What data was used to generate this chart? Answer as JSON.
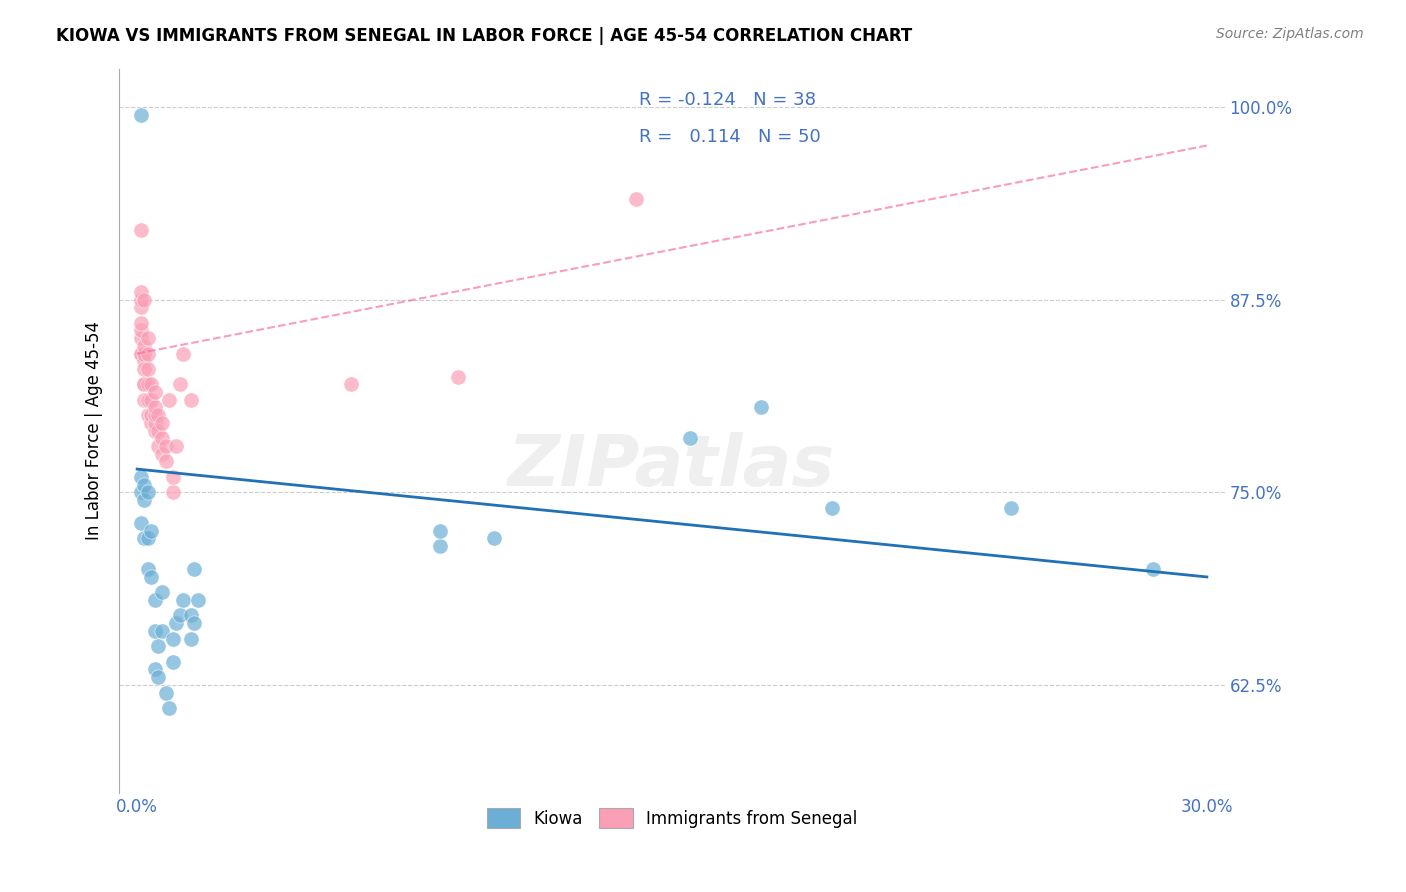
{
  "title": "KIOWA VS IMMIGRANTS FROM SENEGAL IN LABOR FORCE | AGE 45-54 CORRELATION CHART",
  "source": "Source: ZipAtlas.com",
  "ylabel": "In Labor Force | Age 45-54",
  "kiowa_color": "#6baed6",
  "senegal_color": "#fa9fb5",
  "trend_kiowa_color": "#2171b5",
  "trend_senegal_color": "#f768a1",
  "legend_R_kiowa": "-0.124",
  "legend_N_kiowa": "38",
  "legend_R_senegal": "0.114",
  "legend_N_senegal": "50",
  "kiowa_x": [
    0.001,
    0.001,
    0.001,
    0.002,
    0.002,
    0.002,
    0.003,
    0.003,
    0.003,
    0.004,
    0.004,
    0.005,
    0.005,
    0.005,
    0.006,
    0.006,
    0.007,
    0.007,
    0.008,
    0.009,
    0.01,
    0.01,
    0.011,
    0.012,
    0.013,
    0.015,
    0.015,
    0.016,
    0.016,
    0.017,
    0.085,
    0.085,
    0.1,
    0.155,
    0.175,
    0.195,
    0.245,
    0.285
  ],
  "kiowa_y": [
    0.75,
    0.73,
    0.76,
    0.72,
    0.755,
    0.745,
    0.7,
    0.72,
    0.75,
    0.695,
    0.725,
    0.635,
    0.66,
    0.68,
    0.63,
    0.65,
    0.66,
    0.685,
    0.62,
    0.61,
    0.64,
    0.655,
    0.665,
    0.67,
    0.68,
    0.655,
    0.67,
    0.665,
    0.7,
    0.68,
    0.715,
    0.725,
    0.72,
    0.785,
    0.805,
    0.74,
    0.74,
    0.7
  ],
  "kiowa_extra_x": [
    0.001
  ],
  "kiowa_extra_y": [
    0.995
  ],
  "senegal_x": [
    0.001,
    0.001,
    0.001,
    0.001,
    0.001,
    0.001,
    0.001,
    0.001,
    0.001,
    0.002,
    0.002,
    0.002,
    0.002,
    0.002,
    0.002,
    0.002,
    0.002,
    0.003,
    0.003,
    0.003,
    0.003,
    0.003,
    0.003,
    0.004,
    0.004,
    0.004,
    0.004,
    0.005,
    0.005,
    0.005,
    0.005,
    0.005,
    0.006,
    0.006,
    0.006,
    0.007,
    0.007,
    0.007,
    0.008,
    0.008,
    0.009,
    0.01,
    0.01,
    0.011,
    0.012,
    0.013,
    0.015,
    0.06,
    0.09,
    0.14
  ],
  "senegal_y": [
    0.84,
    0.85,
    0.855,
    0.86,
    0.87,
    0.875,
    0.88,
    0.92,
    0.84,
    0.81,
    0.82,
    0.835,
    0.84,
    0.845,
    0.875,
    0.82,
    0.83,
    0.8,
    0.81,
    0.82,
    0.83,
    0.84,
    0.85,
    0.795,
    0.8,
    0.81,
    0.82,
    0.79,
    0.795,
    0.8,
    0.805,
    0.815,
    0.78,
    0.79,
    0.8,
    0.775,
    0.785,
    0.795,
    0.77,
    0.78,
    0.81,
    0.75,
    0.76,
    0.78,
    0.82,
    0.84,
    0.81,
    0.82,
    0.825,
    0.94
  ],
  "kiowa_trend_x": [
    0.0,
    0.3
  ],
  "kiowa_trend_y": [
    0.765,
    0.695
  ],
  "senegal_trend_x": [
    0.0,
    0.3
  ],
  "senegal_trend_y": [
    0.84,
    0.975
  ],
  "xlim": [
    -0.005,
    0.305
  ],
  "ylim": [
    0.555,
    1.025
  ],
  "yticks": [
    0.625,
    0.75,
    0.875,
    1.0
  ],
  "ytick_labels": [
    "62.5%",
    "75.0%",
    "87.5%",
    "100.0%"
  ],
  "xtick_labels": [
    "0.0%",
    "30.0%"
  ],
  "xtick_vals": [
    0.0,
    0.3
  ],
  "watermark_text": "ZIPatlas",
  "title_fontsize": 12,
  "tick_fontsize": 12,
  "legend_fontsize": 13,
  "ylabel_fontsize": 12
}
